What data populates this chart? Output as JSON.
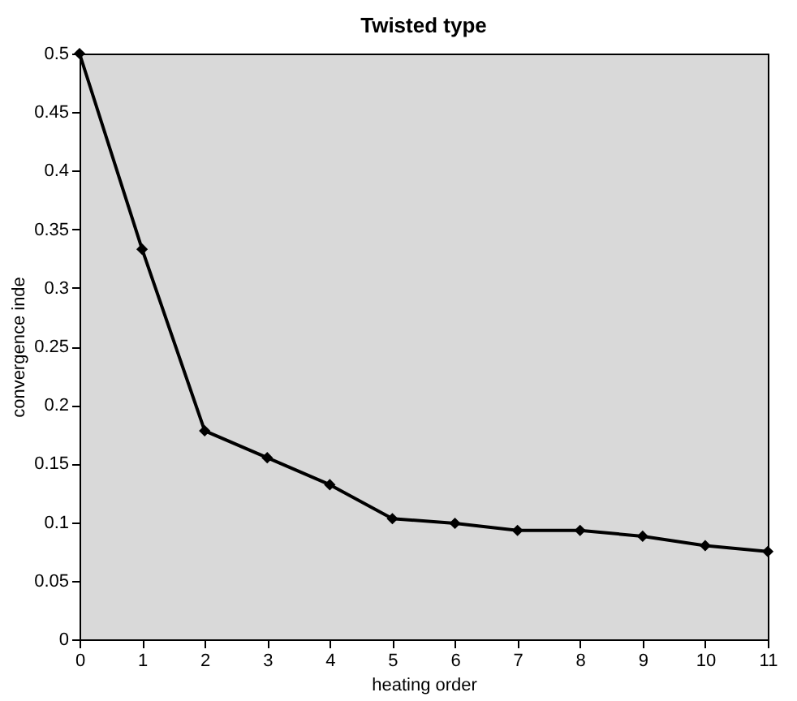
{
  "chart_data": {
    "type": "line",
    "title": "Twisted type",
    "xlabel": "heating order",
    "ylabel": "convergence inde",
    "x": [
      0,
      1,
      2,
      3,
      4,
      5,
      6,
      7,
      8,
      9,
      10,
      11
    ],
    "series": [
      {
        "color": "#000000",
        "values": [
          0.5,
          0.333,
          0.178,
          0.155,
          0.132,
          0.103,
          0.099,
          0.093,
          0.093,
          0.088,
          0.08,
          0.075
        ]
      }
    ],
    "xlim": [
      0,
      11
    ],
    "xticks": [
      0,
      1,
      2,
      3,
      4,
      5,
      6,
      7,
      8,
      9,
      10,
      11
    ],
    "ylim": [
      0,
      0.5
    ],
    "yticks": [
      0,
      0.05,
      0.1,
      0.15,
      0.2,
      0.25,
      0.3,
      0.35,
      0.4,
      0.45,
      0.5
    ],
    "grid": false,
    "marker": "diamond",
    "line_style": "solid"
  }
}
